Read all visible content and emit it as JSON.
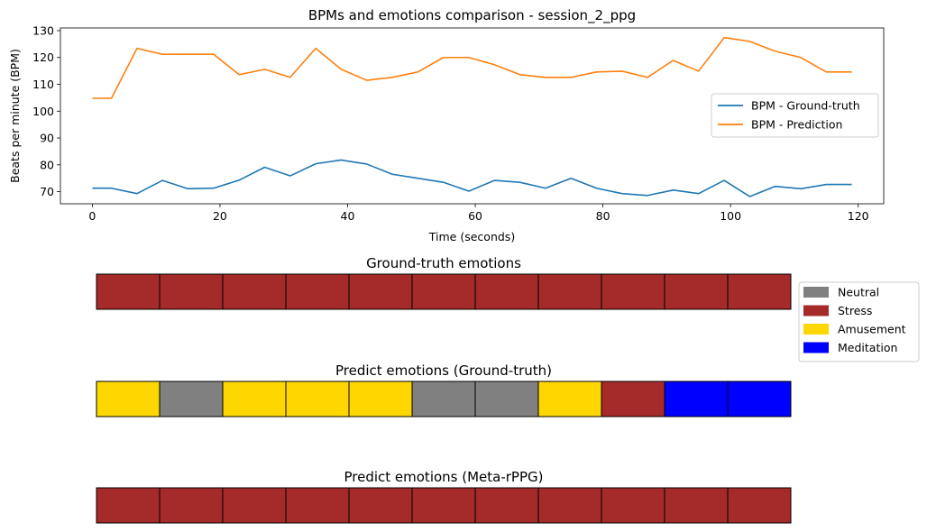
{
  "chart_data": [
    {
      "type": "line",
      "title": "BPMs and emotions comparison - session_2_ppg",
      "xlabel": "Time (seconds)",
      "ylabel": "Beats per minute (BPM)",
      "xlim": [
        -5,
        124
      ],
      "ylim": [
        65.5,
        131
      ],
      "xticks": [
        0,
        20,
        40,
        60,
        80,
        100,
        120
      ],
      "yticks": [
        70,
        80,
        90,
        100,
        110,
        120,
        130
      ],
      "x": [
        0,
        3,
        7,
        11,
        15,
        19,
        23,
        27,
        31,
        35,
        39,
        43,
        47,
        51,
        55,
        59,
        63,
        67,
        71,
        75,
        79,
        83,
        87,
        91,
        95,
        99,
        103,
        107,
        111,
        115,
        119
      ],
      "series": [
        {
          "name": "BPM - Ground-truth",
          "color": "#1f77b4",
          "values": [
            71.3,
            71.3,
            69.3,
            74.2,
            71.1,
            71.3,
            74.3,
            79.1,
            75.9,
            80.4,
            81.8,
            80.3,
            76.5,
            75,
            73.5,
            70.2,
            74.2,
            73.5,
            71.3,
            75,
            71.3,
            69.3,
            68.6,
            70.6,
            69.3,
            74.2,
            68.2,
            72,
            71.1,
            72.7,
            72.7
          ]
        },
        {
          "name": "BPM - Prediction",
          "color": "#ff7f0e",
          "values": [
            104.8,
            104.8,
            123.4,
            121.2,
            121.2,
            121.2,
            113.6,
            115.6,
            112.6,
            123.4,
            115.6,
            111.5,
            112.6,
            114.6,
            120,
            120,
            117.3,
            113.6,
            112.6,
            112.6,
            114.6,
            114.9,
            112.6,
            118.9,
            114.9,
            127.4,
            126,
            122.3,
            120,
            114.6,
            114.6
          ]
        }
      ],
      "legend_position": "center-right",
      "grid": false
    },
    {
      "type": "heatmap",
      "title": "Ground-truth emotions",
      "values": [
        "Stress",
        "Stress",
        "Stress",
        "Stress",
        "Stress",
        "Stress",
        "Stress",
        "Stress",
        "Stress",
        "Stress",
        "Stress"
      ]
    },
    {
      "type": "heatmap",
      "title": "Predict emotions (Ground-truth)",
      "values": [
        "Amusement",
        "Neutral",
        "Amusement",
        "Amusement",
        "Amusement",
        "Neutral",
        "Neutral",
        "Amusement",
        "Stress",
        "Meditation",
        "Meditation"
      ]
    },
    {
      "type": "heatmap",
      "title": "Predict emotions (Meta-rPPG)",
      "values": [
        "Stress",
        "Stress",
        "Stress",
        "Stress",
        "Stress",
        "Stress",
        "Stress",
        "Stress",
        "Stress",
        "Stress",
        "Stress"
      ]
    }
  ],
  "emotion_legend": [
    {
      "label": "Neutral",
      "color": "#808080"
    },
    {
      "label": "Stress",
      "color": "#a52a2a"
    },
    {
      "label": "Amusement",
      "color": "#ffd700"
    },
    {
      "label": "Meditation",
      "color": "#0000ff"
    }
  ]
}
